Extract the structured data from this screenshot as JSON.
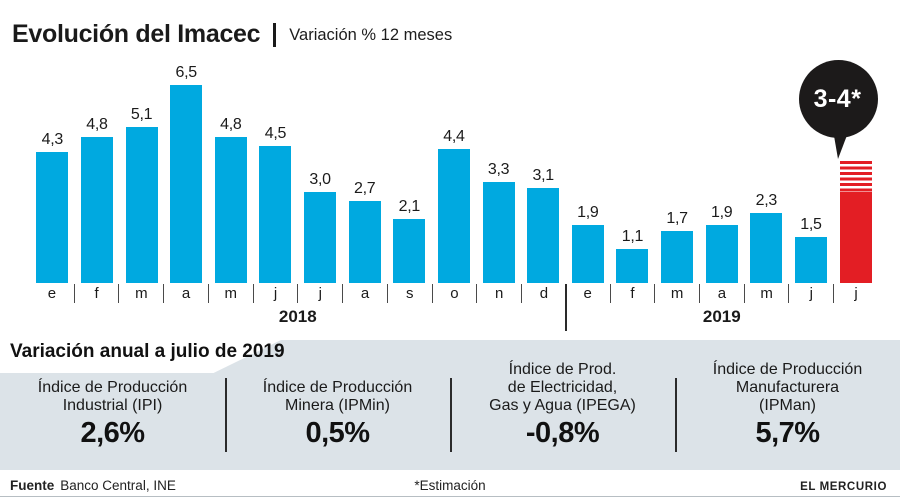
{
  "header": {
    "title": "Evolución del Imacec",
    "subtitle": "Variación % 12 meses"
  },
  "chart_data": {
    "type": "bar",
    "title": "Evolución del Imacec",
    "subtitle": "Variación % 12 meses",
    "ylabel": "Variación % 12 meses",
    "xlabel": "",
    "ylim": [
      0,
      7
    ],
    "grid": false,
    "bar_color": "#00A9E0",
    "estimate_color": "#E31E24",
    "categories": [
      "e",
      "f",
      "m",
      "a",
      "m",
      "j",
      "j",
      "a",
      "s",
      "o",
      "n",
      "d",
      "e",
      "f",
      "m",
      "a",
      "m",
      "j",
      "j"
    ],
    "values": [
      4.3,
      4.8,
      5.1,
      6.5,
      4.8,
      4.5,
      3.0,
      2.7,
      2.1,
      4.4,
      3.3,
      3.1,
      1.9,
      1.1,
      1.7,
      1.9,
      2.3,
      1.5,
      null
    ],
    "value_labels": [
      "4,3",
      "4,8",
      "5,1",
      "6,5",
      "4,8",
      "4,5",
      "3,0",
      "2,7",
      "2,1",
      "4,4",
      "3,3",
      "3,1",
      "1,9",
      "1,1",
      "1,7",
      "1,9",
      "2,3",
      "1,5",
      ""
    ],
    "estimate": {
      "index": 18,
      "min": 3,
      "max": 4,
      "label": "3-4*"
    },
    "groups": [
      {
        "label": "2018",
        "span": 12
      },
      {
        "label": "2019",
        "span": 7
      }
    ]
  },
  "panel": {
    "heading": "Variación anual a julio de 2019",
    "items": [
      {
        "label_lines": [
          "Índice de Producción",
          "Industrial (IPI)"
        ],
        "value": "2,6%"
      },
      {
        "label_lines": [
          "Índice de Producción",
          "Minera (IPMin)"
        ],
        "value": "0,5%"
      },
      {
        "label_lines": [
          "Índice de Prod.",
          "de Electricidad,",
          "Gas y Agua (IPEGA)"
        ],
        "value": "-0,8%"
      },
      {
        "label_lines": [
          "Índice de Producción",
          "Manufacturera",
          "(IPMan)"
        ],
        "value": "5,7%"
      }
    ]
  },
  "footer": {
    "source_label": "Fuente",
    "source": "Banco Central, INE",
    "note": "*Estimación",
    "brand": "EL MERCURIO"
  }
}
